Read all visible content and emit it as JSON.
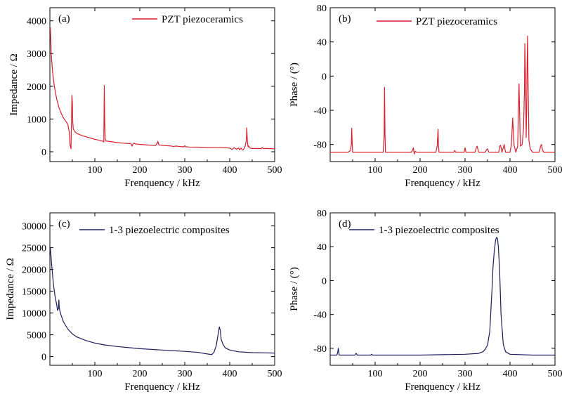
{
  "chart_data": [
    {
      "type": "line",
      "panel_label": "(a)",
      "xlabel": "Frenquency / kHz",
      "ylabel": "Impedance / Ω",
      "xlim": [
        0,
        500
      ],
      "ylim": [
        -300,
        4400
      ],
      "xticks": [
        100,
        200,
        300,
        400,
        500
      ],
      "yticks": [
        0,
        1000,
        2000,
        3000,
        4000
      ],
      "legend_position": "top-right",
      "color": "#d8212e",
      "series": [
        {
          "name": "PZT piezoceramics",
          "x": [
            1,
            3,
            6,
            10,
            15,
            20,
            25,
            30,
            35,
            40,
            43,
            45,
            47,
            48,
            49,
            50,
            51,
            52,
            55,
            60,
            70,
            80,
            90,
            100,
            110,
            118,
            120,
            121,
            122,
            123,
            125,
            130,
            140,
            150,
            160,
            170,
            180,
            183,
            185,
            187,
            190,
            200,
            210,
            220,
            235,
            238,
            240,
            242,
            245,
            260,
            270,
            275,
            280,
            290,
            298,
            300,
            302,
            310,
            330,
            350,
            370,
            390,
            400,
            405,
            408,
            410,
            415,
            420,
            422,
            425,
            428,
            430,
            433,
            435,
            437,
            438,
            439,
            440,
            441,
            442,
            444,
            446,
            450,
            460,
            470,
            472,
            475,
            480,
            490,
            500
          ],
          "y": [
            3800,
            3000,
            2450,
            2000,
            1620,
            1360,
            1180,
            1040,
            940,
            840,
            600,
            200,
            90,
            900,
            1720,
            1500,
            900,
            700,
            620,
            560,
            500,
            460,
            420,
            380,
            350,
            320,
            300,
            2020,
            900,
            400,
            330,
            320,
            300,
            280,
            265,
            255,
            250,
            170,
            250,
            260,
            240,
            225,
            215,
            205,
            190,
            240,
            320,
            220,
            200,
            185,
            175,
            160,
            175,
            160,
            150,
            190,
            150,
            145,
            140,
            130,
            125,
            120,
            115,
            70,
            110,
            120,
            80,
            115,
            60,
            115,
            60,
            60,
            120,
            200,
            380,
            730,
            380,
            220,
            150,
            180,
            120,
            110,
            100,
            100,
            95,
            130,
            95,
            100,
            95,
            90
          ]
        }
      ]
    },
    {
      "type": "line",
      "panel_label": "(b)",
      "xlabel": "Frenquency / kHz",
      "ylabel": "Phase / (°)",
      "xlim": [
        0,
        500
      ],
      "ylim": [
        -100,
        80
      ],
      "xticks": [
        100,
        200,
        300,
        400,
        500
      ],
      "yticks": [
        -80,
        -40,
        0,
        40,
        80
      ],
      "legend_position": "top-right",
      "color": "#d8212e",
      "series": [
        {
          "name": "PZT piezoceramics",
          "x": [
            0,
            40,
            45,
            47,
            48,
            49,
            50,
            52,
            55,
            100,
            118,
            120,
            121,
            122,
            123,
            125,
            180,
            183,
            185,
            187,
            189,
            192,
            235,
            238,
            240,
            241,
            242,
            244,
            275,
            277,
            279,
            298,
            300,
            302,
            305,
            322,
            325,
            327,
            330,
            345,
            348,
            350,
            353,
            375,
            377,
            379,
            382,
            385,
            387,
            390,
            400,
            403,
            406,
            409,
            413,
            417,
            420,
            423,
            427,
            430,
            432,
            433,
            435,
            436,
            437,
            438,
            439,
            440,
            442,
            445,
            450,
            465,
            468,
            470,
            472,
            475,
            500
          ],
          "y": [
            -89,
            -89,
            -87,
            -80,
            -61,
            -80,
            -89,
            -89,
            -89,
            -89,
            -89,
            -70,
            -13,
            -70,
            -89,
            -89,
            -89,
            -87,
            -84,
            -91,
            -88,
            -89,
            -89,
            -82,
            -62,
            -82,
            -89,
            -89,
            -89,
            -87,
            -89,
            -89,
            -84,
            -89,
            -89,
            -89,
            -84,
            -82,
            -89,
            -89,
            -86,
            -85,
            -89,
            -89,
            -82,
            -81,
            -89,
            -84,
            -80,
            -89,
            -89,
            -81,
            -49,
            -81,
            -89,
            -82,
            -9,
            -82,
            -80,
            -61,
            -20,
            38,
            -20,
            -72,
            -40,
            10,
            47,
            0,
            -75,
            -85,
            -89,
            -89,
            -82,
            -80,
            -86,
            -89,
            -89
          ]
        }
      ]
    },
    {
      "type": "line",
      "panel_label": "(c)",
      "xlabel": "Frenquency / kHz",
      "ylabel": "Impedance / Ω",
      "xlim": [
        0,
        500
      ],
      "ylim": [
        -2000,
        33000
      ],
      "xticks": [
        100,
        200,
        300,
        400,
        500
      ],
      "yticks": [
        0,
        5000,
        10000,
        15000,
        20000,
        25000,
        30000
      ],
      "legend_position": "top-left",
      "color": "#1c1c5e",
      "series": [
        {
          "name": "1-3 piezoelectric composites",
          "x": [
            1,
            4,
            8,
            12,
            15,
            17,
            19,
            20,
            21,
            23,
            25,
            30,
            40,
            50,
            60,
            80,
            100,
            120,
            150,
            200,
            250,
            300,
            330,
            350,
            360,
            365,
            370,
            374,
            377,
            379,
            381,
            385,
            390,
            400,
            420,
            450,
            480,
            500
          ],
          "y": [
            25000,
            21000,
            16500,
            13500,
            12000,
            10600,
            11000,
            13000,
            11200,
            10200,
            9500,
            8000,
            6300,
            5200,
            4500,
            3700,
            3100,
            2700,
            2300,
            1800,
            1500,
            1200,
            950,
            600,
            450,
            1000,
            2500,
            5000,
            6800,
            6000,
            4000,
            2800,
            2000,
            1500,
            1100,
            900,
            850,
            800
          ]
        }
      ]
    },
    {
      "type": "line",
      "panel_label": "(d)",
      "xlabel": "Frenquency / kHz",
      "ylabel": "Phase / (°)",
      "xlim": [
        0,
        500
      ],
      "ylim": [
        -100,
        80
      ],
      "xticks": [
        100,
        200,
        300,
        400,
        500
      ],
      "yticks": [
        -80,
        -40,
        0,
        40,
        80
      ],
      "legend_position": "top-left",
      "color": "#1c1c5e",
      "series": [
        {
          "name": "1-3 piezoelectric composites",
          "x": [
            0,
            15,
            17,
            18,
            19,
            20,
            22,
            25,
            55,
            57,
            58,
            60,
            90,
            92,
            94,
            100,
            200,
            300,
            330,
            340,
            345,
            350,
            355,
            358,
            360,
            362,
            365,
            368,
            370,
            372,
            374,
            377,
            380,
            385,
            390,
            400,
            450,
            500
          ],
          "y": [
            -88,
            -88,
            -84,
            -80,
            -84,
            -88,
            -88,
            -88,
            -88,
            -86,
            -86,
            -88,
            -88,
            -87,
            -88,
            -88,
            -88,
            -87,
            -86,
            -84,
            -81,
            -76,
            -60,
            -30,
            -10,
            15,
            35,
            48,
            51,
            50,
            40,
            10,
            -40,
            -75,
            -84,
            -87,
            -88,
            -88
          ]
        }
      ]
    }
  ]
}
